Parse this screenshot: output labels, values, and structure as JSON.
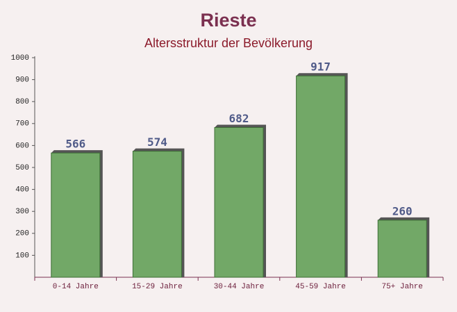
{
  "chart_data": {
    "type": "bar",
    "title": "Rieste",
    "subtitle": "Altersstruktur der Bevölkerung",
    "categories": [
      "0-14 Jahre",
      "15-29 Jahre",
      "30-44 Jahre",
      "45-59 Jahre",
      "75+ Jahre"
    ],
    "values": [
      566,
      574,
      682,
      917,
      260
    ],
    "color": "#6aa35f",
    "ylim": [
      0,
      1000
    ],
    "yticks": [
      100,
      200,
      300,
      400,
      500,
      600,
      700,
      800,
      900,
      1000
    ]
  }
}
